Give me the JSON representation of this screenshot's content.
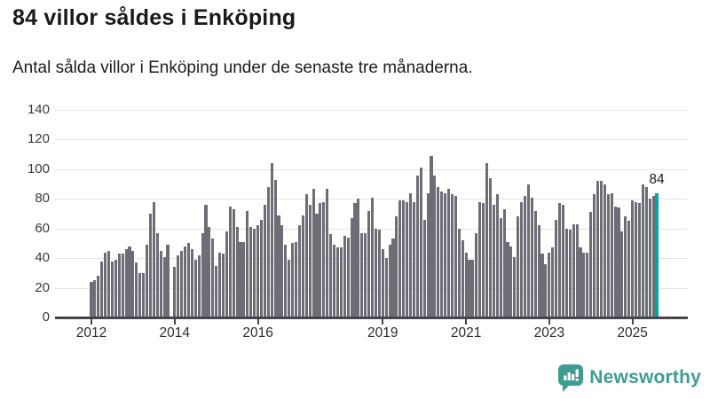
{
  "header": {
    "title": "84 villor såldes i Enköping",
    "subtitle": "Antal sålda villor i Enköping under de senaste tre månaderna."
  },
  "chart_data": {
    "type": "bar",
    "title": "84 villor såldes i Enköping",
    "subtitle": "Antal sålda villor i Enköping under de senaste tre månaderna.",
    "x_start": "2012-01",
    "x_end": "2025-08",
    "x_unit": "month",
    "x_tick_years": [
      2012,
      2014,
      2016,
      2019,
      2021,
      2023,
      2025
    ],
    "y_ticks": [
      0,
      20,
      40,
      60,
      80,
      100,
      120,
      140
    ],
    "ylim": [
      0,
      140
    ],
    "grid": "horizontal",
    "bar_color": "#6d6d75",
    "highlight_color": "#00a6a2",
    "values": [
      24,
      25,
      28,
      38,
      44,
      45,
      38,
      39,
      43,
      43,
      46,
      48,
      45,
      37,
      30,
      30,
      49,
      70,
      78,
      57,
      45,
      41,
      49,
      0,
      34,
      42,
      45,
      48,
      50,
      46,
      39,
      42,
      57,
      76,
      61,
      53,
      35,
      44,
      43,
      58,
      75,
      73,
      61,
      51,
      51,
      72,
      61,
      60,
      62,
      66,
      76,
      88,
      104,
      93,
      69,
      62,
      49,
      39,
      50,
      51,
      62,
      69,
      83,
      76,
      87,
      70,
      77,
      78,
      87,
      56,
      49,
      47,
      47,
      55,
      54,
      67,
      77,
      80,
      57,
      57,
      72,
      81,
      60,
      59,
      46,
      40,
      49,
      53,
      68,
      79,
      79,
      78,
      84,
      78,
      96,
      101,
      66,
      84,
      109,
      96,
      88,
      85,
      84,
      87,
      83,
      82,
      60,
      52,
      44,
      39,
      39,
      57,
      78,
      77,
      104,
      94,
      76,
      83,
      67,
      73,
      51,
      48,
      41,
      68,
      78,
      82,
      90,
      81,
      72,
      62,
      43,
      36,
      44,
      47,
      66,
      77,
      76,
      60,
      59,
      63,
      63,
      47,
      44,
      44,
      71,
      83,
      92,
      92,
      90,
      83,
      84,
      75,
      74,
      58,
      68,
      65,
      79,
      78,
      77,
      90,
      88,
      80,
      82,
      84
    ],
    "highlight": {
      "index": 163,
      "value": 84,
      "label": "84"
    }
  },
  "footer": {
    "brand": "Newsworthy",
    "brand_color": "#3e9c92",
    "logo_icon": "bar-chart-speech-bubble-icon"
  }
}
